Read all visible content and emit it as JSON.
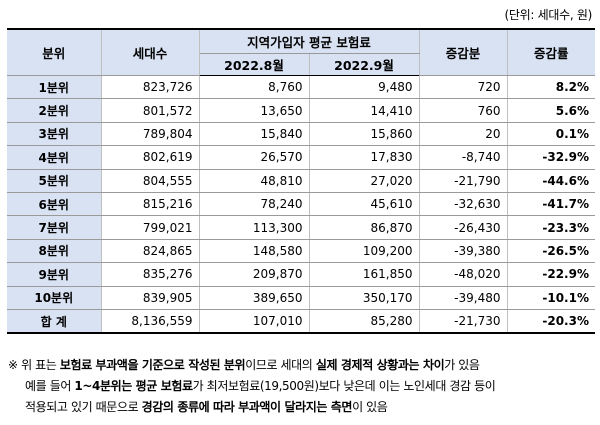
{
  "unit_label": "(단위: 세대수, 원)",
  "headers": {
    "category": "분위",
    "households": "세대수",
    "premium_group": "지역가입자 평균 보험료",
    "aug": "2022.8월",
    "sep": "2022.9월",
    "change": "증감분",
    "rate": "증감률"
  },
  "rows": [
    {
      "cat": "1분위",
      "households": "823,726",
      "aug": "8,760",
      "sep": "9,480",
      "change": "720",
      "rate": "8.2%"
    },
    {
      "cat": "2분위",
      "households": "801,572",
      "aug": "13,650",
      "sep": "14,410",
      "change": "760",
      "rate": "5.6%"
    },
    {
      "cat": "3분위",
      "households": "789,804",
      "aug": "15,840",
      "sep": "15,860",
      "change": "20",
      "rate": "0.1%"
    },
    {
      "cat": "4분위",
      "households": "802,619",
      "aug": "26,570",
      "sep": "17,830",
      "change": "-8,740",
      "rate": "-32.9%"
    },
    {
      "cat": "5분위",
      "households": "804,555",
      "aug": "48,810",
      "sep": "27,020",
      "change": "-21,790",
      "rate": "-44.6%"
    },
    {
      "cat": "6분위",
      "households": "815,216",
      "aug": "78,240",
      "sep": "45,610",
      "change": "-32,630",
      "rate": "-41.7%"
    },
    {
      "cat": "7분위",
      "households": "799,021",
      "aug": "113,300",
      "sep": "86,870",
      "change": "-26,430",
      "rate": "-23.3%"
    },
    {
      "cat": "8분위",
      "households": "824,865",
      "aug": "148,580",
      "sep": "109,200",
      "change": "-39,380",
      "rate": "-26.5%"
    },
    {
      "cat": "9분위",
      "households": "835,276",
      "aug": "209,870",
      "sep": "161,850",
      "change": "-48,020",
      "rate": "-22.9%"
    },
    {
      "cat": "10분위",
      "households": "839,905",
      "aug": "389,650",
      "sep": "350,170",
      "change": "-39,480",
      "rate": "-10.1%"
    }
  ],
  "total": {
    "cat": "합 계",
    "households": "8,136,559",
    "aug": "107,010",
    "sep": "85,280",
    "change": "-21,730",
    "rate": "-20.3%"
  },
  "note": {
    "l1a": "※ 위 표는 ",
    "l1b": "보험료 부과액을 기준으로 작성된 분위",
    "l1c": "이므로 세대의 ",
    "l1d": "실제 경제적 상황과는 차이",
    "l1e": "가 있음",
    "l2a": "예를 들어 ",
    "l2b": "1~4분위는 평균 보험료",
    "l2c": "가 최저보험료(19,500원)보다 낮은데 이는 노인세대 경감 등이",
    "l3a": "적용되고 있기 때문으로 ",
    "l3b": "경감의 종류에 따라 부과액이 달라지는 측면",
    "l3c": "이 있음"
  }
}
